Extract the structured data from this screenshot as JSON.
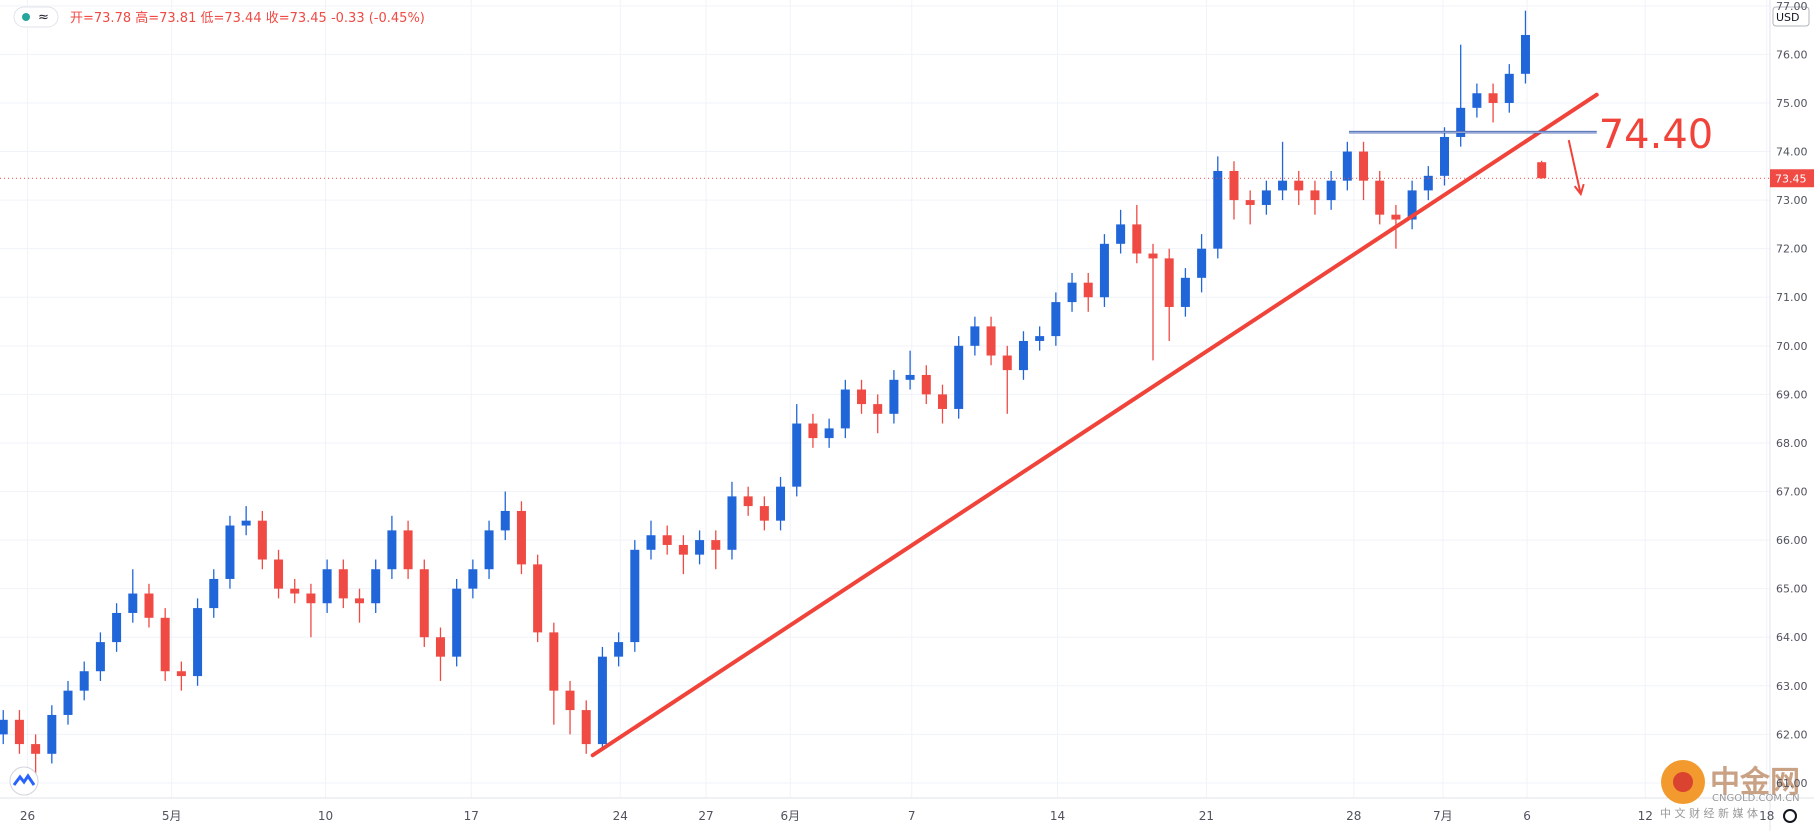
{
  "chart_data": {
    "type": "candlestick",
    "ohlc_legend": "开=73.78 高=73.81 低=73.44 收=73.45 -0.33 (-0.45%)",
    "currency": "USD",
    "up_color": "#2166d9",
    "down_color": "#ef4a44",
    "grid": true,
    "open": [
      62.0,
      62.3,
      61.8,
      61.6,
      62.4,
      62.9,
      63.3,
      63.9,
      64.5,
      64.9,
      64.4,
      63.3,
      63.2,
      64.6,
      65.2,
      66.3,
      66.4,
      65.6,
      65.0,
      64.9,
      64.7,
      65.4,
      64.8,
      64.7,
      65.4,
      66.2,
      65.4,
      64.0,
      63.6,
      65.0,
      65.4,
      66.2,
      66.6,
      65.5,
      64.1,
      62.9,
      62.5,
      61.8,
      63.6,
      63.9,
      65.8,
      66.1,
      65.9,
      65.7,
      66.0,
      65.8,
      66.9,
      66.7,
      66.4,
      67.1,
      68.4,
      68.1,
      68.3,
      69.1,
      68.8,
      68.6,
      69.3,
      69.4,
      69.0,
      68.7,
      70.0,
      70.4,
      69.8,
      69.5,
      70.1,
      70.2,
      70.9,
      71.3,
      71.0,
      72.1,
      72.5,
      71.9,
      71.8,
      70.8,
      71.4,
      72.0,
      73.6,
      73.0,
      72.9,
      73.2,
      73.4,
      73.2,
      73.0,
      73.4,
      74.0,
      73.4,
      72.7,
      72.6,
      73.2,
      73.5,
      74.3,
      74.9,
      75.2,
      75.0,
      75.6,
      73.78
    ],
    "high": [
      62.5,
      62.5,
      62.0,
      62.6,
      63.1,
      63.5,
      64.1,
      64.7,
      65.4,
      65.1,
      64.6,
      63.5,
      64.8,
      65.4,
      66.5,
      66.7,
      66.6,
      65.8,
      65.2,
      65.1,
      65.6,
      65.6,
      65.0,
      65.6,
      66.5,
      66.4,
      65.6,
      64.2,
      65.2,
      65.6,
      66.4,
      67.0,
      66.8,
      65.7,
      64.3,
      63.1,
      62.7,
      63.8,
      64.1,
      66.0,
      66.4,
      66.3,
      66.1,
      66.2,
      66.2,
      67.2,
      67.1,
      66.9,
      67.3,
      68.8,
      68.6,
      68.5,
      69.3,
      69.3,
      69.0,
      69.5,
      69.9,
      69.6,
      69.2,
      70.2,
      70.6,
      70.6,
      70.0,
      70.3,
      70.4,
      71.1,
      71.5,
      71.5,
      72.3,
      72.8,
      72.9,
      72.1,
      72.0,
      71.6,
      72.3,
      73.9,
      73.8,
      73.2,
      73.4,
      74.2,
      73.6,
      73.4,
      73.6,
      74.2,
      74.2,
      73.6,
      72.9,
      73.4,
      73.7,
      74.5,
      76.2,
      75.4,
      75.4,
      75.8,
      76.9,
      73.81
    ],
    "low": [
      61.8,
      61.6,
      61.2,
      61.4,
      62.2,
      62.7,
      63.1,
      63.7,
      64.3,
      64.2,
      63.1,
      62.9,
      63.0,
      64.4,
      65.0,
      66.1,
      65.4,
      64.8,
      64.7,
      64.0,
      64.5,
      64.6,
      64.3,
      64.5,
      65.2,
      65.2,
      63.8,
      63.1,
      63.4,
      64.8,
      65.2,
      66.0,
      65.3,
      63.9,
      62.2,
      62.0,
      61.6,
      61.7,
      63.4,
      63.7,
      65.6,
      65.7,
      65.3,
      65.5,
      65.4,
      65.6,
      66.5,
      66.2,
      66.2,
      66.9,
      67.9,
      67.9,
      68.1,
      68.6,
      68.2,
      68.4,
      69.1,
      68.8,
      68.4,
      68.5,
      69.8,
      69.6,
      68.6,
      69.3,
      69.9,
      70.0,
      70.7,
      70.7,
      70.8,
      71.9,
      71.7,
      69.7,
      70.1,
      70.6,
      71.1,
      71.8,
      72.6,
      72.5,
      72.7,
      73.0,
      72.9,
      72.7,
      72.8,
      73.2,
      73.0,
      72.5,
      72.0,
      72.4,
      73.0,
      73.3,
      74.1,
      74.7,
      74.6,
      74.8,
      75.4,
      73.44
    ],
    "close": [
      62.3,
      61.8,
      61.6,
      62.4,
      62.9,
      63.3,
      63.9,
      64.5,
      64.9,
      64.4,
      63.3,
      63.2,
      64.6,
      65.2,
      66.3,
      66.4,
      65.6,
      65.0,
      64.9,
      64.7,
      65.4,
      64.8,
      64.7,
      65.4,
      66.2,
      65.4,
      64.0,
      63.6,
      65.0,
      65.4,
      66.2,
      66.6,
      65.5,
      64.1,
      62.9,
      62.5,
      61.8,
      63.6,
      63.9,
      65.8,
      66.1,
      65.9,
      65.7,
      66.0,
      65.8,
      66.9,
      66.7,
      66.4,
      67.1,
      68.4,
      68.1,
      68.3,
      69.1,
      68.8,
      68.6,
      69.3,
      69.4,
      69.0,
      68.7,
      70.0,
      70.4,
      69.8,
      69.5,
      70.1,
      70.2,
      70.9,
      71.3,
      71.0,
      72.1,
      72.5,
      71.9,
      71.8,
      70.8,
      71.4,
      72.0,
      73.6,
      73.0,
      72.9,
      73.2,
      73.4,
      73.2,
      73.0,
      73.4,
      74.0,
      73.4,
      72.7,
      72.6,
      73.2,
      73.5,
      74.3,
      74.9,
      75.2,
      75.0,
      75.6,
      76.4,
      73.45
    ],
    "xlim": [
      -0.2,
      109.1
    ],
    "xticks": [
      {
        "value": 1.5,
        "label": "26"
      },
      {
        "value": 10.4,
        "label": "5月"
      },
      {
        "value": 19.9,
        "label": "10"
      },
      {
        "value": 28.9,
        "label": "17"
      },
      {
        "value": 38.1,
        "label": "24"
      },
      {
        "value": 43.4,
        "label": "27"
      },
      {
        "value": 48.6,
        "label": "6月"
      },
      {
        "value": 56.1,
        "label": "7"
      },
      {
        "value": 65.1,
        "label": "14"
      },
      {
        "value": 74.3,
        "label": "21"
      },
      {
        "value": 83.4,
        "label": "28"
      },
      {
        "value": 88.9,
        "label": "7月"
      },
      {
        "value": 94.1,
        "label": "6"
      },
      {
        "value": 101.4,
        "label": "12"
      },
      {
        "value": 108.9,
        "label": "18"
      }
    ],
    "ylim": [
      60.69,
      77.12
    ],
    "yticks": [
      {
        "value": 61,
        "label": "61.00"
      },
      {
        "value": 62,
        "label": "62.00"
      },
      {
        "value": 63,
        "label": "63.00"
      },
      {
        "value": 64,
        "label": "64.00"
      },
      {
        "value": 65,
        "label": "65.00"
      },
      {
        "value": 66,
        "label": "66.00"
      },
      {
        "value": 67,
        "label": "67.00"
      },
      {
        "value": 68,
        "label": "68.00"
      },
      {
        "value": 69,
        "label": "69.00"
      },
      {
        "value": 70,
        "label": "70.00"
      },
      {
        "value": 71,
        "label": "71.00"
      },
      {
        "value": 72,
        "label": "72.00"
      },
      {
        "value": 73,
        "label": "73.00"
      },
      {
        "value": 74,
        "label": "74.00"
      },
      {
        "value": 75,
        "label": "75.00"
      },
      {
        "value": 76,
        "label": "76.00"
      },
      {
        "value": 77,
        "label": "77.00"
      }
    ],
    "trendline": {
      "x": [
        36.4,
        98.4
      ],
      "y": [
        61.57,
        75.17
      ],
      "color": "#f0433a"
    },
    "hline": {
      "value": 74.4,
      "label": "74.40",
      "x": [
        83.1,
        98.4
      ],
      "color": "#2b4fa8",
      "label_color": "#f0433a"
    },
    "watermark": {
      "logo": "中金网",
      "site": "CNGOLD.COM.CN",
      "slogan": "中 文 财 经 新 媒 体"
    }
  }
}
